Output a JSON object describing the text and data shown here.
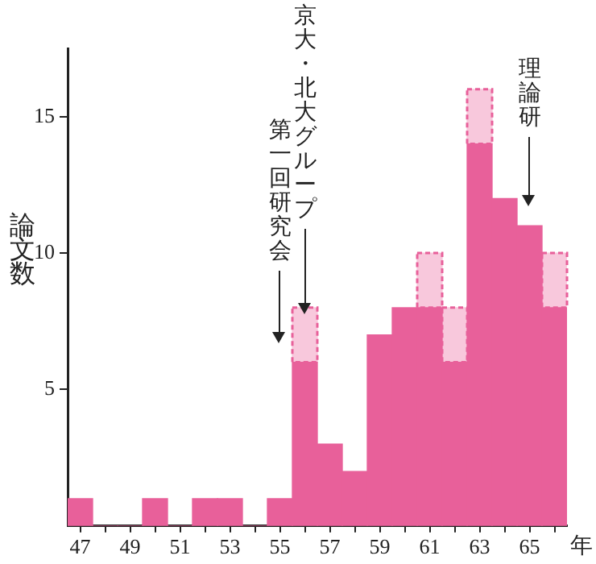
{
  "chart_data": {
    "type": "bar",
    "stacked": true,
    "xlabel": "年",
    "ylabel": "論文数",
    "categories": [
      "47",
      null,
      "49",
      null,
      "51",
      null,
      "53",
      null,
      "55",
      null,
      "57",
      null,
      "59",
      null,
      "61",
      null,
      "63",
      null,
      "65",
      null
    ],
    "series": [
      {
        "color": "#e8609a",
        "values": [
          1,
          0,
          0,
          1,
          0,
          1,
          1,
          0,
          1,
          6,
          3,
          2,
          7,
          8,
          8,
          6,
          14,
          12,
          11,
          8
        ]
      },
      {
        "color": "#f8c8dc",
        "line_style": "dashed",
        "values": [
          null,
          null,
          null,
          null,
          null,
          null,
          null,
          null,
          null,
          2,
          null,
          null,
          null,
          null,
          2,
          2,
          2,
          null,
          null,
          2
        ]
      }
    ],
    "ylim": [
      0,
      17.5
    ],
    "yticks": [
      5,
      10,
      15
    ],
    "grid": false,
    "annotations": [
      "第一回研究会",
      "京大・北大グループ",
      "理論研"
    ]
  }
}
